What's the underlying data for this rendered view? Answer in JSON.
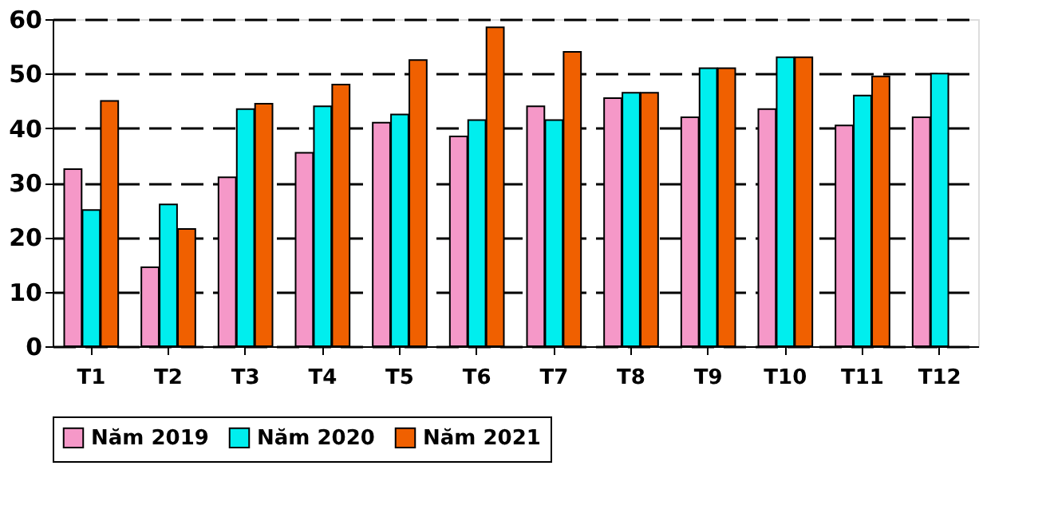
{
  "chart_data": {
    "type": "bar",
    "categories": [
      "T1",
      "T2",
      "T3",
      "T4",
      "T5",
      "T6",
      "T7",
      "T8",
      "T9",
      "T10",
      "T11",
      "T12"
    ],
    "series": [
      {
        "name": "Năm 2019",
        "color": "#f598c8",
        "values": [
          32.5,
          14.5,
          31,
          35.5,
          41,
          38.5,
          44,
          45.5,
          42,
          43.5,
          40.5,
          42
        ]
      },
      {
        "name": "Năm 2020",
        "color": "#00eeee",
        "values": [
          25,
          26,
          43.5,
          44,
          42.5,
          41.5,
          41.5,
          46.5,
          51,
          53,
          46,
          50
        ]
      },
      {
        "name": "Năm 2021",
        "color": "#f06000",
        "values": [
          45,
          21.5,
          44.5,
          48,
          52.5,
          58.5,
          54,
          46.5,
          51,
          53,
          49.5,
          null
        ]
      }
    ],
    "ylim": [
      0,
      60
    ],
    "yticks": [
      0,
      10,
      20,
      30,
      40,
      50,
      60
    ],
    "grid": "y",
    "line_style": "dashed",
    "legend": "bottom"
  }
}
